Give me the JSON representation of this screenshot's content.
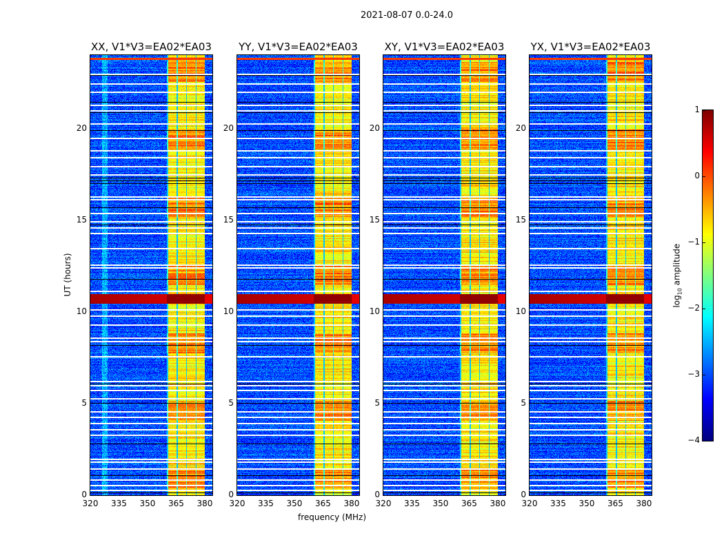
{
  "chart_data": {
    "type": "heatmap",
    "suptitle": "2021-08-07 0.0-24.0",
    "panels": [
      {
        "title": "XX, V1*V3=EA02*EA03"
      },
      {
        "title": "YY, V1*V3=EA02*EA03"
      },
      {
        "title": "XY, V1*V3=EA02*EA03"
      },
      {
        "title": "YX, V1*V3=EA02*EA03"
      }
    ],
    "xlabel": "frequency (MHz)",
    "ylabel": "UT (hours)",
    "xlim": [
      320,
      384
    ],
    "ylim": [
      0,
      24
    ],
    "xticks": [
      "320",
      "335",
      "350",
      "365",
      "380"
    ],
    "xtick_values": [
      320,
      335,
      350,
      365,
      380
    ],
    "yticks": [
      "0",
      "5",
      "10",
      "15",
      "20"
    ],
    "ytick_values": [
      0,
      5,
      10,
      15,
      20
    ],
    "colormap": "jet",
    "colorbar": {
      "label": "log10 amplitude",
      "label_main": "log",
      "label_sub": "10",
      "label_rest": " amplitude",
      "range": [
        -4,
        1
      ],
      "ticks": [
        "1",
        "0",
        "−1",
        "−2",
        "−3",
        "−4"
      ],
      "tick_values": [
        1,
        0,
        -1,
        -2,
        -3,
        -4
      ]
    },
    "background_level": -3,
    "bright_band_mhz": [
      360,
      380
    ],
    "bright_band_level": -0.8,
    "rfi_event_hours": [
      10.45,
      11.0
    ],
    "rfi_event_level": 0.8,
    "flagged_rows_hours": [
      0.3,
      0.55,
      0.85,
      1.45,
      1.85,
      2.0,
      3.3,
      3.6,
      3.95,
      4.3,
      4.6,
      5.3,
      5.75,
      6.0,
      6.25,
      7.6,
      8.4,
      8.6,
      9.3,
      9.8,
      10.15,
      11.15,
      12.45,
      12.6,
      13.5,
      14.3,
      14.6,
      14.95,
      15.4,
      16.15,
      16.3,
      17.5,
      17.95,
      18.45,
      18.8,
      19.5,
      20.3,
      21.0,
      21.3,
      22.0,
      22.45,
      23.0
    ],
    "dark_rows_hours": [
      0.15,
      1.1,
      2.8,
      5.05,
      6.1,
      8.2,
      11.8,
      14.75,
      15.7,
      17.0,
      17.15,
      17.3,
      19.9,
      20.9,
      21.45,
      22.9
    ]
  }
}
